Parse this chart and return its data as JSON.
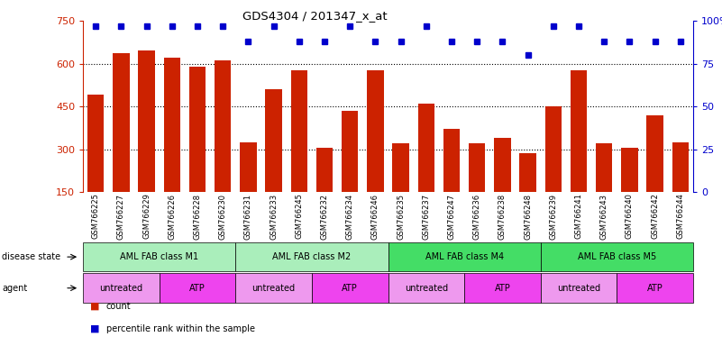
{
  "title": "GDS4304 / 201347_x_at",
  "samples": [
    "GSM766225",
    "GSM766227",
    "GSM766229",
    "GSM766226",
    "GSM766228",
    "GSM766230",
    "GSM766231",
    "GSM766233",
    "GSM766245",
    "GSM766232",
    "GSM766234",
    "GSM766246",
    "GSM766235",
    "GSM766237",
    "GSM766247",
    "GSM766236",
    "GSM766238",
    "GSM766248",
    "GSM766239",
    "GSM766241",
    "GSM766243",
    "GSM766240",
    "GSM766242",
    "GSM766244"
  ],
  "counts": [
    490,
    635,
    645,
    620,
    590,
    610,
    325,
    510,
    575,
    305,
    435,
    575,
    320,
    460,
    370,
    320,
    340,
    285,
    450,
    575,
    320,
    305,
    420,
    325
  ],
  "percentile_ranks": [
    97,
    97,
    97,
    97,
    97,
    97,
    88,
    97,
    88,
    88,
    97,
    88,
    88,
    97,
    88,
    88,
    88,
    80,
    97,
    97,
    88,
    88,
    88,
    88
  ],
  "disease_state_groups": [
    {
      "label": "AML FAB class M1",
      "start": 0,
      "end": 5,
      "color": "#AAEEBB"
    },
    {
      "label": "AML FAB class M2",
      "start": 6,
      "end": 11,
      "color": "#AAEEBB"
    },
    {
      "label": "AML FAB class M4",
      "start": 12,
      "end": 17,
      "color": "#44DD66"
    },
    {
      "label": "AML FAB class M5",
      "start": 18,
      "end": 23,
      "color": "#44DD66"
    }
  ],
  "agent_groups": [
    {
      "label": "untreated",
      "start": 0,
      "end": 2,
      "color": "#EE99EE"
    },
    {
      "label": "ATP",
      "start": 3,
      "end": 5,
      "color": "#EE44EE"
    },
    {
      "label": "untreated",
      "start": 6,
      "end": 8,
      "color": "#EE99EE"
    },
    {
      "label": "ATP",
      "start": 9,
      "end": 11,
      "color": "#EE44EE"
    },
    {
      "label": "untreated",
      "start": 12,
      "end": 14,
      "color": "#EE99EE"
    },
    {
      "label": "ATP",
      "start": 15,
      "end": 17,
      "color": "#EE44EE"
    },
    {
      "label": "untreated",
      "start": 18,
      "end": 20,
      "color": "#EE99EE"
    },
    {
      "label": "ATP",
      "start": 21,
      "end": 23,
      "color": "#EE44EE"
    }
  ],
  "bar_color": "#CC2200",
  "dot_color": "#0000CC",
  "left_ylim": [
    150,
    750
  ],
  "left_yticks": [
    150,
    300,
    450,
    600,
    750
  ],
  "right_ylim": [
    0,
    100
  ],
  "right_yticks": [
    0,
    25,
    50,
    75,
    100
  ],
  "bar_width": 0.65,
  "background_color": "#ffffff",
  "grid_color": "#000000",
  "grid_lines": [
    300,
    450,
    600
  ]
}
